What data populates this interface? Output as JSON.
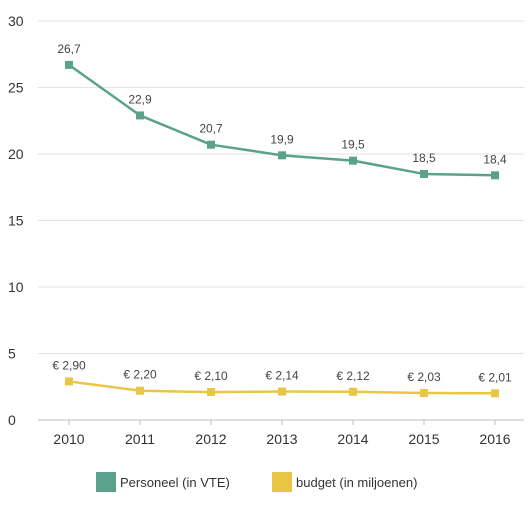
{
  "chart_data": {
    "type": "line",
    "x": [
      "2010",
      "2011",
      "2012",
      "2013",
      "2014",
      "2015",
      "2016"
    ],
    "y_ticks": [
      "0",
      "5",
      "10",
      "15",
      "20",
      "25",
      "30"
    ],
    "ylim": [
      0,
      30
    ],
    "grid": true,
    "legend_position": "bottom",
    "series": [
      {
        "name": "Personeel (in VTE)",
        "color": "#5aa28b",
        "values": [
          26.7,
          22.9,
          20.7,
          19.9,
          19.5,
          18.5,
          18.4
        ],
        "labels": [
          "26,7",
          "22,9",
          "20,7",
          "19,9",
          "19,5",
          "18,5",
          "18,4"
        ]
      },
      {
        "name": "budget (in miljoenen)",
        "color": "#e9c645",
        "values": [
          2.9,
          2.2,
          2.1,
          2.14,
          2.12,
          2.03,
          2.01
        ],
        "labels": [
          "€ 2,90",
          "€ 2,20",
          "€ 2,10",
          "€ 2,14",
          "€ 2,12",
          "€ 2,03",
          "€ 2,01"
        ]
      }
    ]
  }
}
